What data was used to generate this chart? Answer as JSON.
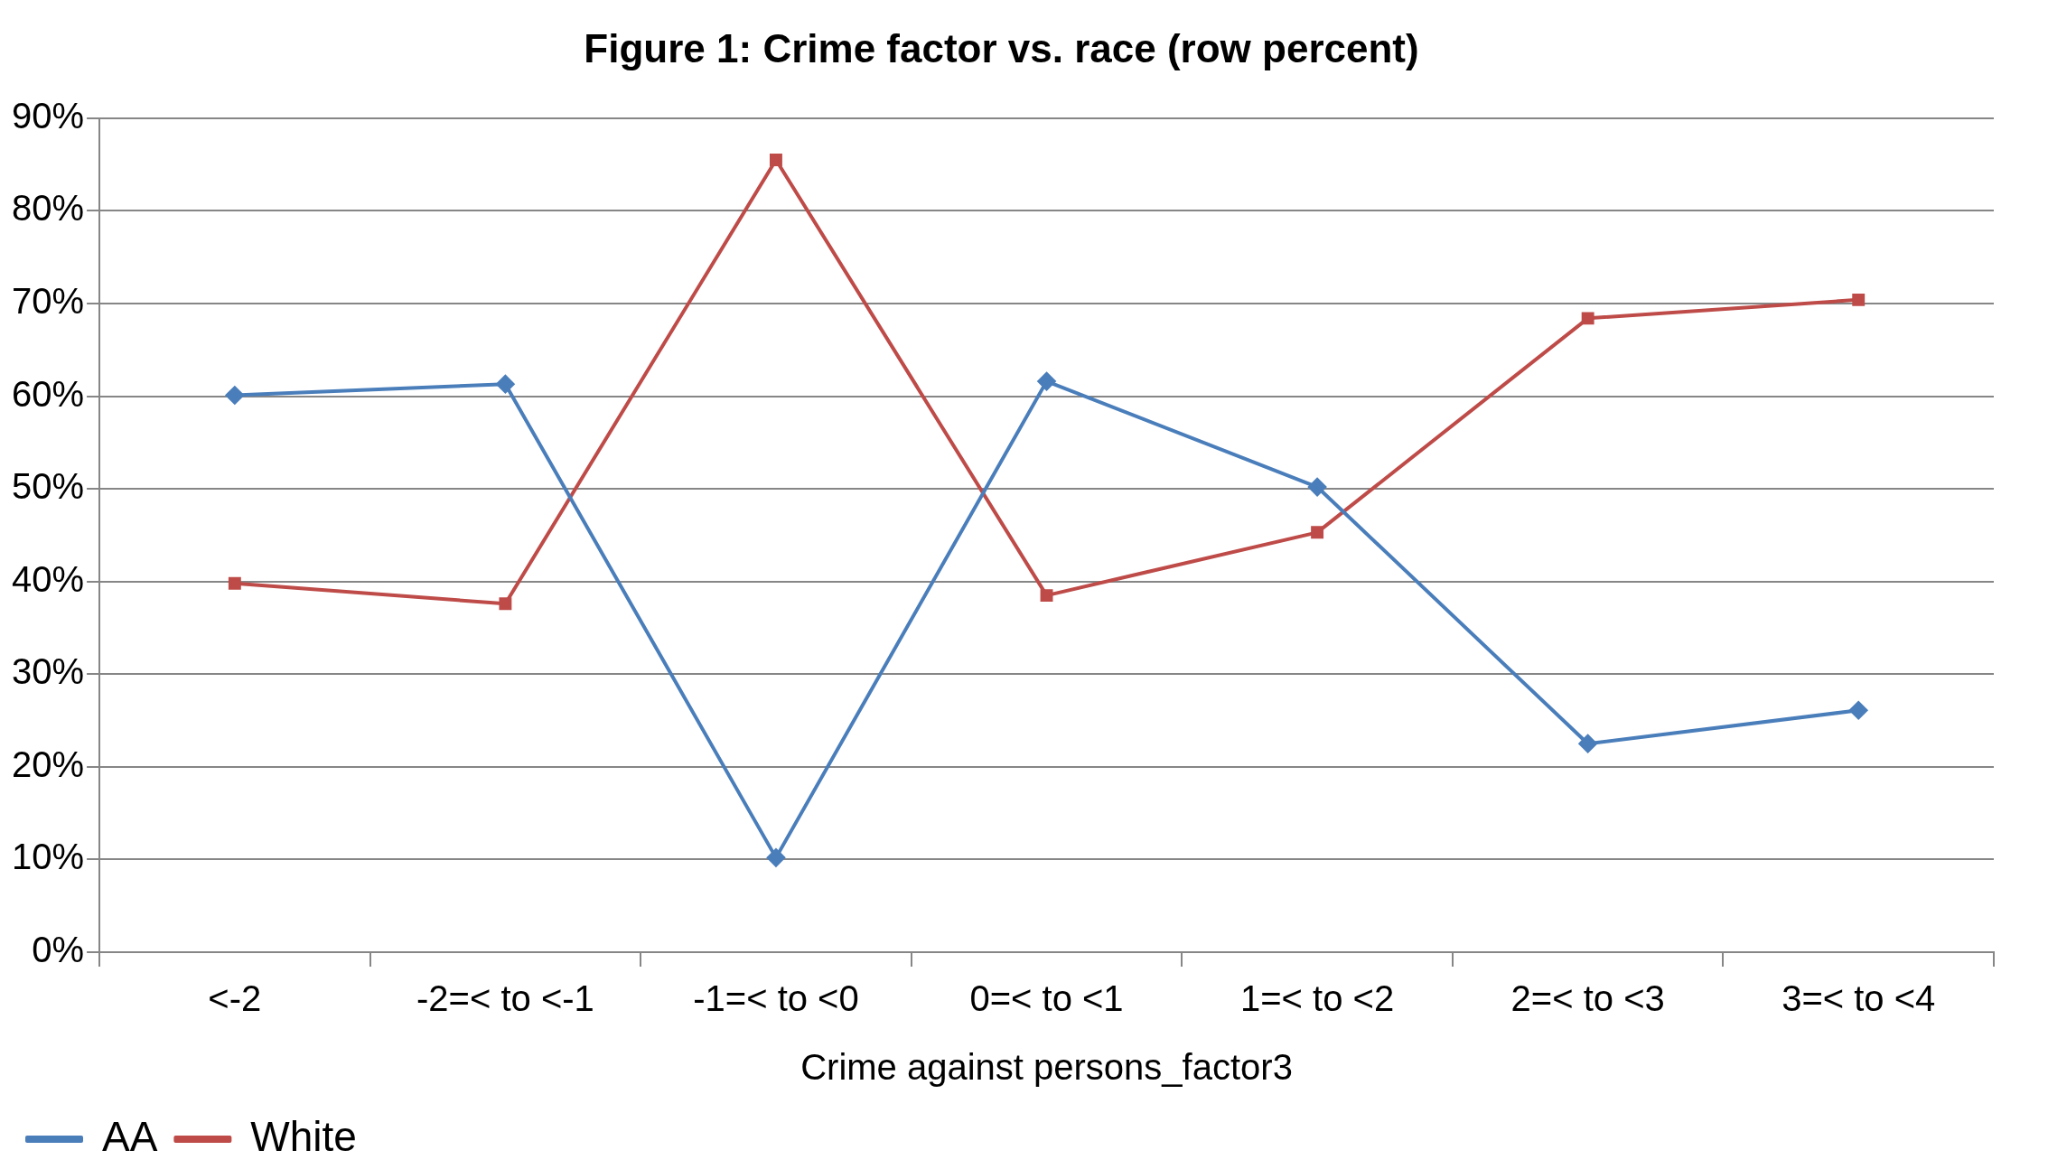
{
  "chart_data": {
    "type": "line",
    "title": "Figure 1: Crime factor vs. race (row percent)",
    "xlabel": "Crime against persons_factor3",
    "categories": [
      "<-2",
      "-2=< to <-1",
      "-1=< to <0",
      "0=< to <1",
      "1=< to <2",
      "2=< to <3",
      "3=< to <4"
    ],
    "series": [
      {
        "name": "AA",
        "color": "#4a7ebb",
        "marker": "diamond",
        "values": [
          60.1,
          61.3,
          10.2,
          61.6,
          50.2,
          22.5,
          26.1
        ]
      },
      {
        "name": "White",
        "color": "#be4b48",
        "marker": "square",
        "values": [
          39.8,
          37.6,
          85.5,
          38.5,
          45.3,
          68.4,
          70.4
        ]
      }
    ],
    "ylim": [
      0,
      90
    ],
    "yticks": [
      {
        "value": 0,
        "label": "0%"
      },
      {
        "value": 10,
        "label": "10%"
      },
      {
        "value": 20,
        "label": "20%"
      },
      {
        "value": 30,
        "label": "30%"
      },
      {
        "value": 40,
        "label": "40%"
      },
      {
        "value": 50,
        "label": "50%"
      },
      {
        "value": 60,
        "label": "60%"
      },
      {
        "value": 70,
        "label": "70%"
      },
      {
        "value": 80,
        "label": "80%"
      },
      {
        "value": 90,
        "label": "90%"
      }
    ],
    "grid": "y",
    "legend": "bottom left",
    "line_style": "solid"
  }
}
